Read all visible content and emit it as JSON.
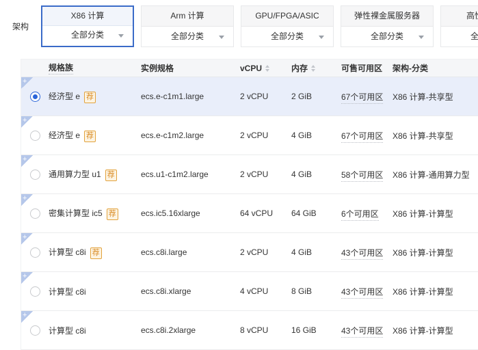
{
  "arch": {
    "label": "架构",
    "tabs": [
      {
        "title": "X86 计算",
        "dropdown": "全部分类",
        "selected": true
      },
      {
        "title": "Arm 计算",
        "dropdown": "全部分类",
        "selected": false
      },
      {
        "title": "GPU/FPGA/ASIC",
        "dropdown": "全部分类",
        "selected": false
      },
      {
        "title": "弹性裸金属服务器",
        "dropdown": "全部分类",
        "selected": false
      },
      {
        "title": "高性能计算",
        "dropdown": "全部分类",
        "selected": false
      }
    ]
  },
  "table": {
    "columns": [
      {
        "label": "规格族"
      },
      {
        "label": "实例规格"
      },
      {
        "label": "vCPU"
      },
      {
        "label": "内存"
      },
      {
        "label": "可售可用区"
      },
      {
        "label": "架构-分类"
      }
    ],
    "badge_label": "荐",
    "rows": [
      {
        "family": "经济型 e",
        "recommended": true,
        "spec": "ecs.e-c1m1.large",
        "vcpu": "2 vCPU",
        "memory": "2 GiB",
        "zones": "67个可用区",
        "category": "X86 计算-共享型",
        "selected": true
      },
      {
        "family": "经济型 e",
        "recommended": true,
        "spec": "ecs.e-c1m2.large",
        "vcpu": "2 vCPU",
        "memory": "4 GiB",
        "zones": "67个可用区",
        "category": "X86 计算-共享型",
        "selected": false
      },
      {
        "family": "通用算力型 u1",
        "recommended": true,
        "spec": "ecs.u1-c1m2.large",
        "vcpu": "2 vCPU",
        "memory": "4 GiB",
        "zones": "58个可用区",
        "category": "X86 计算-通用算力型",
        "selected": false
      },
      {
        "family": "密集计算型 ic5",
        "recommended": true,
        "spec": "ecs.ic5.16xlarge",
        "vcpu": "64 vCPU",
        "memory": "64 GiB",
        "zones": "6个可用区",
        "category": "X86 计算-计算型",
        "selected": false
      },
      {
        "family": "计算型 c8i",
        "recommended": true,
        "spec": "ecs.c8i.large",
        "vcpu": "2 vCPU",
        "memory": "4 GiB",
        "zones": "43个可用区",
        "category": "X86 计算-计算型",
        "selected": false
      },
      {
        "family": "计算型 c8i",
        "recommended": false,
        "spec": "ecs.c8i.xlarge",
        "vcpu": "4 vCPU",
        "memory": "8 GiB",
        "zones": "43个可用区",
        "category": "X86 计算-计算型",
        "selected": false
      },
      {
        "family": "计算型 c8i",
        "recommended": false,
        "spec": "ecs.c8i.2xlarge",
        "vcpu": "8 vCPU",
        "memory": "16 GiB",
        "zones": "43个可用区",
        "category": "X86 计算-计算型",
        "selected": false
      }
    ]
  },
  "colors": {
    "accent_blue": "#2b65d9",
    "selected_tab_border": "#3a6bc8",
    "selected_row_bg": "#e9eefa",
    "badge_orange": "#d98b25",
    "header_bg": "#f5f6f8"
  }
}
